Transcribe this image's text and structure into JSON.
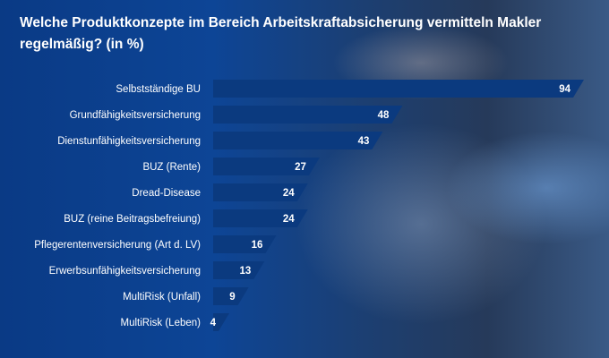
{
  "chart_data": {
    "type": "bar",
    "orientation": "horizontal",
    "title": "Welche Produktkonzepte im Bereich Arbeitskraftabsicherung vermitteln Makler regelmäßig? (in %)",
    "categories": [
      "Selbstständige BU",
      "Grundfähigkeitsversicherung",
      "Dienstunfähigkeitsversicherung",
      "BUZ (Rente)",
      "Dread-Disease",
      "BUZ (reine Beitragsbefreiung)",
      "Pflegerentenversicherung (Art d. LV)",
      "Erwerbsunfähigkeitsversicherung",
      "MultiRisk (Unfall)",
      "MultiRisk (Leben)"
    ],
    "values": [
      94,
      48,
      43,
      27,
      24,
      24,
      16,
      13,
      9,
      4
    ],
    "xlim": [
      0,
      94
    ],
    "colors": {
      "bar": "#0b3a7f",
      "text": "#ffffff"
    }
  }
}
